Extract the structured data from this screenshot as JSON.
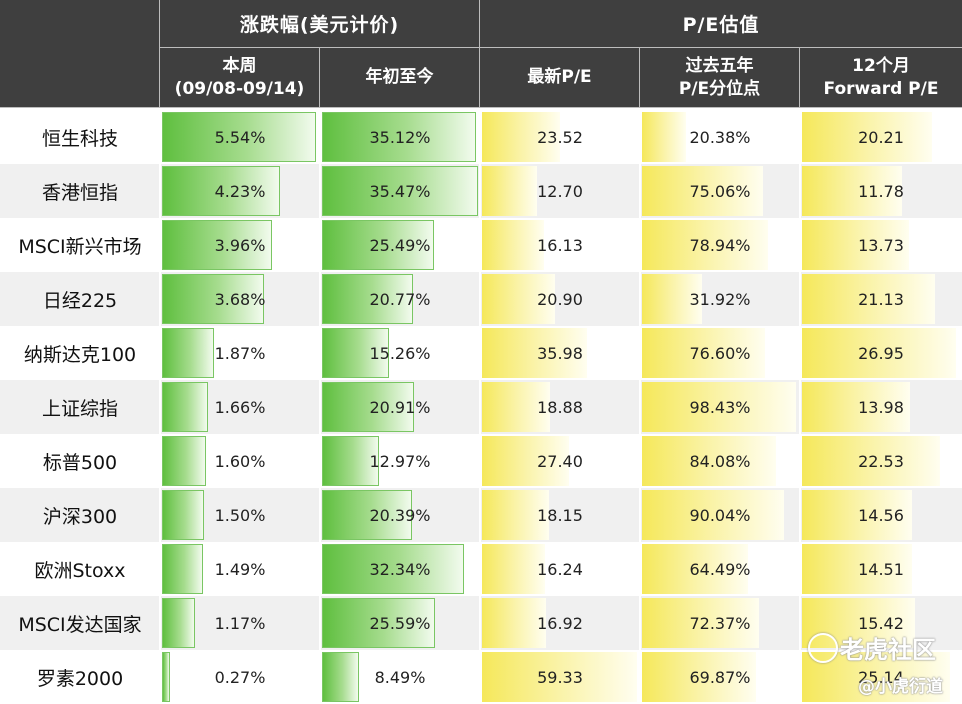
{
  "headers": {
    "group_change": "涨跌幅(美元计价)",
    "group_pe": "P/E估值",
    "col_week_line1": "本周",
    "col_week_line2": "(09/08-09/14)",
    "col_ytd": "年初至今",
    "col_pe": "最新P/E",
    "col_pctl_line1": "过去五年",
    "col_pctl_line2": "P/E分位点",
    "col_fwd_line1": "12个月",
    "col_fwd_line2": "Forward P/E"
  },
  "chart_data": {
    "type": "table",
    "columns": [
      "本周(09/08-09/14)",
      "年初至今",
      "最新P/E",
      "过去五年P/E分位点",
      "12个月Forward P/E"
    ],
    "rows": [
      {
        "name": "恒生科技",
        "week": "5.54%",
        "ytd": "35.12%",
        "pe": "23.52",
        "pctl": "20.38%",
        "fwd": "20.21"
      },
      {
        "name": "香港恒指",
        "week": "4.23%",
        "ytd": "35.47%",
        "pe": "12.70",
        "pctl": "75.06%",
        "fwd": "11.78"
      },
      {
        "name": "MSCI新兴市场",
        "week": "3.96%",
        "ytd": "25.49%",
        "pe": "16.13",
        "pctl": "78.94%",
        "fwd": "13.73"
      },
      {
        "name": "日经225",
        "week": "3.68%",
        "ytd": "20.77%",
        "pe": "20.90",
        "pctl": "31.92%",
        "fwd": "21.13"
      },
      {
        "name": "纳斯达克100",
        "week": "1.87%",
        "ytd": "15.26%",
        "pe": "35.98",
        "pctl": "76.60%",
        "fwd": "26.95"
      },
      {
        "name": "上证综指",
        "week": "1.66%",
        "ytd": "20.91%",
        "pe": "18.88",
        "pctl": "98.43%",
        "fwd": "13.98"
      },
      {
        "name": "标普500",
        "week": "1.60%",
        "ytd": "12.97%",
        "pe": "27.40",
        "pctl": "84.08%",
        "fwd": "22.53"
      },
      {
        "name": "沪深300",
        "week": "1.50%",
        "ytd": "20.39%",
        "pe": "18.15",
        "pctl": "90.04%",
        "fwd": "14.56"
      },
      {
        "name": "欧洲Stoxx",
        "week": "1.49%",
        "ytd": "32.34%",
        "pe": "16.24",
        "pctl": "64.49%",
        "fwd": "14.51"
      },
      {
        "name": "MSCI发达国家",
        "week": "1.17%",
        "ytd": "25.59%",
        "pe": "16.92",
        "pctl": "72.37%",
        "fwd": "15.42"
      },
      {
        "name": "罗素2000",
        "week": "0.27%",
        "ytd": "8.49%",
        "pe": "59.33",
        "pctl": "69.87%",
        "fwd": "25.14"
      }
    ]
  },
  "watermark": {
    "text1": "老虎社区",
    "text2": "@小虎衍道"
  },
  "colors": {
    "header_bg": "#3f3f3f",
    "change_bar": "#5fbf3f",
    "pe_bar": "#f5e85a",
    "row_alt": "#f0f0f0"
  }
}
